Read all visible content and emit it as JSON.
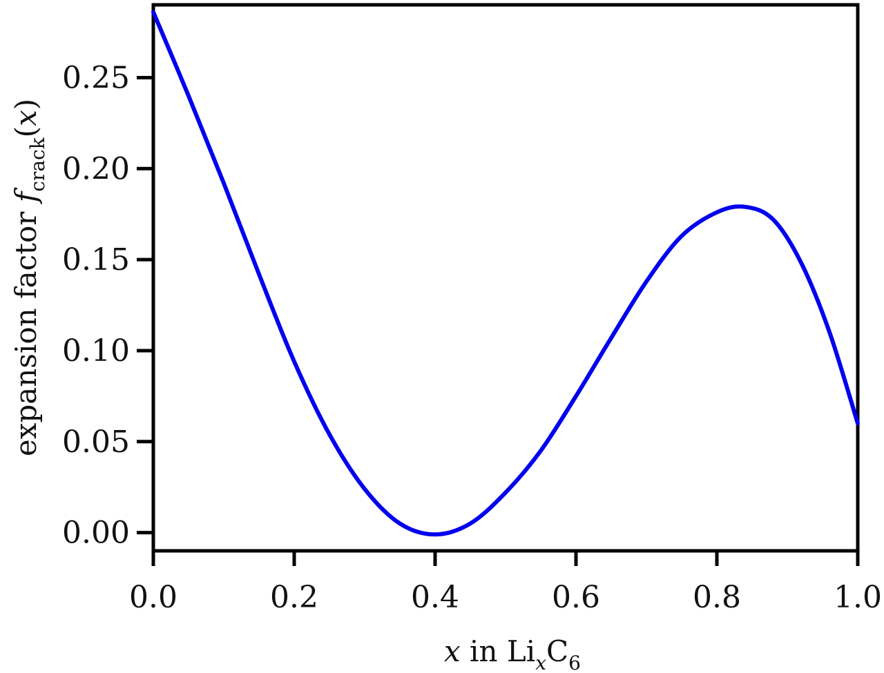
{
  "chart_data": {
    "type": "line",
    "xlabel": {
      "var": "x",
      "mid": " in Li",
      "sub": "x",
      "tail": "C",
      "sub2": "6"
    },
    "ylabel": {
      "prefix": "expansion factor ",
      "func": "f",
      "sub": "crack",
      "lparen": "(",
      "var": "x",
      "rparen": ")"
    },
    "xlim": [
      0.0,
      1.0
    ],
    "ylim": [
      -0.01,
      0.29
    ],
    "xticks": [
      {
        "value": 0.0,
        "label": "0.0"
      },
      {
        "value": 0.2,
        "label": "0.2"
      },
      {
        "value": 0.4,
        "label": "0.4"
      },
      {
        "value": 0.6,
        "label": "0.6"
      },
      {
        "value": 0.8,
        "label": "0.8"
      },
      {
        "value": 1.0,
        "label": "1.0"
      }
    ],
    "yticks": [
      {
        "value": 0.0,
        "label": "0.00"
      },
      {
        "value": 0.05,
        "label": "0.05"
      },
      {
        "value": 0.1,
        "label": "0.10"
      },
      {
        "value": 0.15,
        "label": "0.15"
      },
      {
        "value": 0.2,
        "label": "0.20"
      },
      {
        "value": 0.25,
        "label": "0.25"
      }
    ],
    "grid": false,
    "series": [
      {
        "color": "#0000ee",
        "x": [
          0.0,
          0.05,
          0.1,
          0.15,
          0.2,
          0.25,
          0.3,
          0.35,
          0.4,
          0.45,
          0.5,
          0.55,
          0.6,
          0.65,
          0.7,
          0.75,
          0.8,
          0.84,
          0.88,
          0.92,
          0.96,
          1.0
        ],
        "y": [
          0.286,
          0.24,
          0.192,
          0.142,
          0.094,
          0.054,
          0.024,
          0.005,
          -0.001,
          0.005,
          0.022,
          0.045,
          0.075,
          0.107,
          0.138,
          0.163,
          0.176,
          0.179,
          0.172,
          0.148,
          0.11,
          0.06
        ]
      }
    ]
  }
}
